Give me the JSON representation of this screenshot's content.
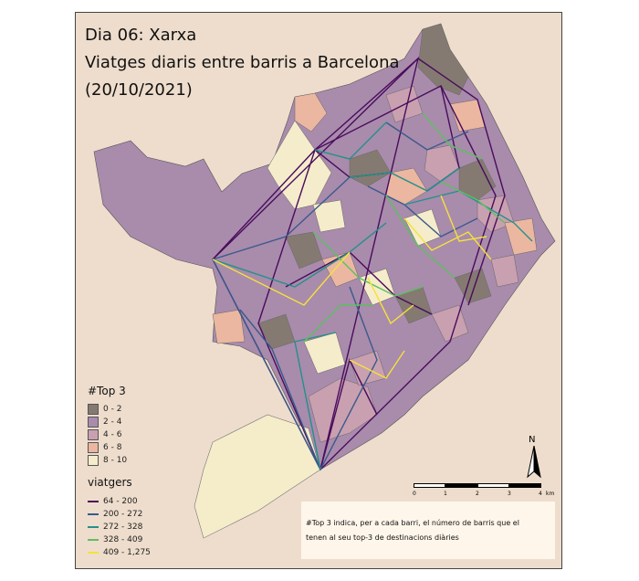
{
  "title": {
    "line1": "Dia 06: Xarxa",
    "line2": "Viatges diaris entre barris a Barcelona",
    "line3": "(20/10/2021)"
  },
  "legend_top3": {
    "title": "#Top 3",
    "items": [
      {
        "label": "0 - 2",
        "color": "#857a72"
      },
      {
        "label": "2 - 4",
        "color": "#a98bac"
      },
      {
        "label": "4 - 6",
        "color": "#c9a0b0"
      },
      {
        "label": "6 - 8",
        "color": "#ebb7a0"
      },
      {
        "label": "8 - 10",
        "color": "#f5eccb"
      }
    ]
  },
  "legend_viatgers": {
    "title": "viatgers",
    "items": [
      {
        "label": "64 - 200",
        "color": "#4a0c5c"
      },
      {
        "label": "200 - 272",
        "color": "#3a5a8c"
      },
      {
        "label": "272 - 328",
        "color": "#22918a"
      },
      {
        "label": "328 - 409",
        "color": "#5cc060"
      },
      {
        "label": "409 - 1,275",
        "color": "#f4e23a"
      }
    ]
  },
  "note": {
    "line1": "#Top 3 indica, per a cada barri, el número de barris que el",
    "line2": "tenen al seu top-3 de destinacions diàries"
  },
  "scale": {
    "labels": [
      "0",
      "1",
      "2",
      "3",
      "4"
    ],
    "unit": "km"
  },
  "north_label": "N",
  "colors": {
    "background": "#eeddcc",
    "sea": "#efe0cf",
    "port_area": "#f5ecca"
  }
}
